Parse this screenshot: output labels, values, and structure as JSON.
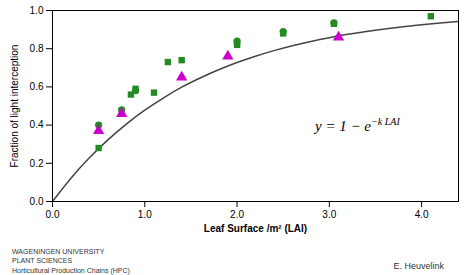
{
  "chart_data": {
    "type": "scatter",
    "xlabel": "Leaf Surface /m² (LAI)",
    "ylabel": "Fraction of light interception",
    "xlim": [
      0.0,
      4.4
    ],
    "ylim": [
      0.0,
      1.0
    ],
    "xticks": [
      {
        "value": 0.0,
        "label": "0.0"
      },
      {
        "value": 1.0,
        "label": "1.0"
      },
      {
        "value": 2.0,
        "label": "2.0"
      },
      {
        "value": 3.0,
        "label": "3.0"
      },
      {
        "value": 4.0,
        "label": "4.0"
      }
    ],
    "yticks": [
      {
        "value": 0.0,
        "label": "0.0"
      },
      0.2,
      0.4,
      0.6,
      0.8,
      {
        "value": 1.0,
        "label": "1.0"
      }
    ],
    "series": [
      {
        "type": "line",
        "color": "#444444",
        "x": [
          0.0,
          0.2,
          0.4,
          0.6,
          0.8,
          1.0,
          1.2,
          1.4,
          1.6,
          1.8,
          2.0,
          2.2,
          2.4,
          2.6,
          2.8,
          3.0,
          3.2,
          3.4,
          3.6,
          3.8,
          4.0,
          4.2,
          4.4
        ],
        "values": [
          0.0,
          0.1219,
          0.2289,
          0.3229,
          0.4055,
          0.478,
          0.5416,
          0.5984,
          0.6465,
          0.6896,
          0.7275,
          0.7607,
          0.7899,
          0.8155,
          0.838,
          0.8577,
          0.8751,
          0.8903,
          0.9037,
          0.9154,
          0.9257,
          0.9348,
          0.9427
        ]
      },
      {
        "type": "scatter",
        "color": "#228B22",
        "marker": "square",
        "x": [
          0.5,
          0.75,
          0.85,
          0.9,
          1.1,
          1.25,
          1.4,
          2.0,
          2.0,
          2.5,
          3.05,
          4.1
        ],
        "values": [
          0.28,
          0.47,
          0.56,
          0.59,
          0.57,
          0.73,
          0.74,
          0.83,
          0.82,
          0.88,
          0.93,
          0.97
        ]
      },
      {
        "type": "scatter",
        "color": "#228B22",
        "marker": "circle",
        "x": [
          0.5,
          0.75,
          0.9,
          2.0,
          2.5,
          3.05
        ],
        "values": [
          0.4,
          0.48,
          0.58,
          0.84,
          0.89,
          0.935
        ]
      },
      {
        "type": "scatter",
        "color": "#CC00CC",
        "marker": "triangle",
        "x": [
          0.5,
          0.75,
          1.4,
          1.9,
          3.1
        ],
        "values": [
          0.37,
          0.46,
          0.65,
          0.76,
          0.86
        ]
      }
    ],
    "annotations": [
      {
        "text": "y = 1 − e",
        "superscript": "−k LAI",
        "x": 2.85,
        "y": 0.38
      },
      {
        "text": "WAGENINGEN UNIVERSITY\nPLANT SCIENCES\nHorticultural Production Chains (HPC)"
      },
      {
        "text": "E. Heuvelink"
      }
    ]
  }
}
